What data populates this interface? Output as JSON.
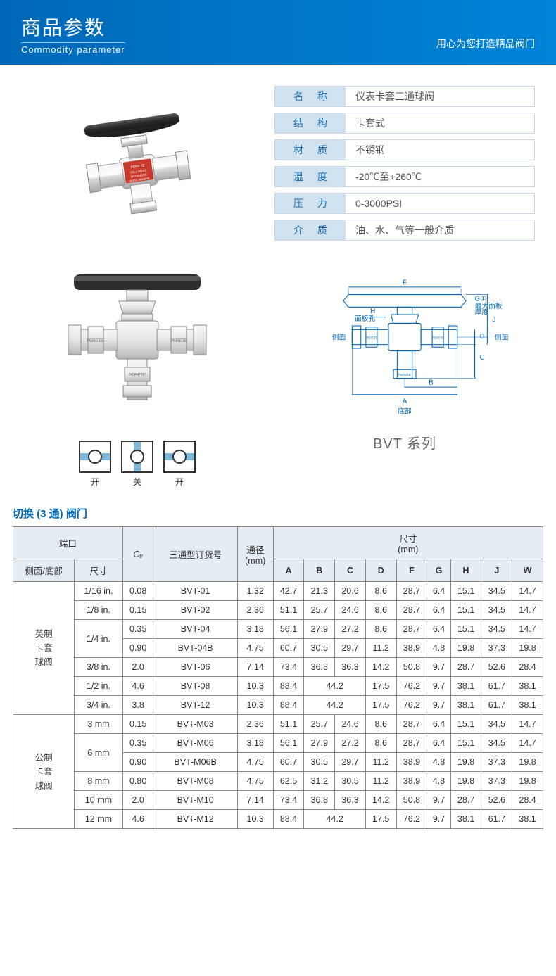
{
  "header": {
    "title_cn": "商品参数",
    "title_en": "Commodity parameter",
    "slogan": "用心为您打造精品阀门"
  },
  "specs": [
    {
      "label": "名 称",
      "value": "仪表卡套三通球阀"
    },
    {
      "label": "结 构",
      "value": "卡套式"
    },
    {
      "label": "材 质",
      "value": "不锈钢"
    },
    {
      "label": "温 度",
      "value": "-20℃至+260℃"
    },
    {
      "label": "压 力",
      "value": "0-3000PSI"
    },
    {
      "label": "介 质",
      "value": "油、水、气等一般介质"
    }
  ],
  "symbols": {
    "open": "开",
    "close": "关",
    "open2": "开"
  },
  "series_label": "BVT 系列",
  "dim_labels": {
    "panel_hole": "面板孔",
    "max_panel": "最大面板",
    "thickness": "厚度",
    "side": "侧面",
    "bottom": "底部"
  },
  "table": {
    "title": "切换 (3 通) 阀门",
    "headers": {
      "port": "端口",
      "side_bottom": "侧面/底部",
      "size": "尺寸",
      "cv": "Cᵥ",
      "partno": "三通型订货号",
      "bore": "通径\n(mm)",
      "dims": "尺寸\n(mm)",
      "A": "A",
      "B": "B",
      "C": "C",
      "D": "D",
      "F": "F",
      "G": "G",
      "H": "H",
      "J": "J",
      "W": "W"
    },
    "rowgroups": [
      {
        "name": "英制\n卡套\n球阀",
        "rows": [
          {
            "size": "1/16 in.",
            "cv": "0.08",
            "pn": "BVT-01",
            "bore": "1.32",
            "A": "42.7",
            "B": "21.3",
            "C": "20.6",
            "D": "8.6",
            "F": "28.7",
            "G": "6.4",
            "H": "15.1",
            "J": "34.5",
            "W": "14.7"
          },
          {
            "size": "1/8 in.",
            "cv": "0.15",
            "pn": "BVT-02",
            "bore": "2.36",
            "A": "51.1",
            "B": "25.7",
            "C": "24.6",
            "D": "8.6",
            "F": "28.7",
            "G": "6.4",
            "H": "15.1",
            "J": "34.5",
            "W": "14.7"
          },
          {
            "size": "1/4 in.",
            "sizeSpan": 2,
            "cv": "0.35",
            "pn": "BVT-04",
            "bore": "3.18",
            "A": "56.1",
            "B": "27.9",
            "C": "27.2",
            "D": "8.6",
            "F": "28.7",
            "G": "6.4",
            "H": "15.1",
            "J": "34.5",
            "W": "14.7"
          },
          {
            "cv": "0.90",
            "pn": "BVT-04B",
            "bore": "4.75",
            "A": "60.7",
            "B": "30.5",
            "C": "29.7",
            "D": "11.2",
            "F": "38.9",
            "G": "4.8",
            "H": "19.8",
            "J": "37.3",
            "W": "19.8"
          },
          {
            "size": "3/8 in.",
            "cv": "2.0",
            "pn": "BVT-06",
            "bore": "7.14",
            "A": "73.4",
            "B": "36.8",
            "C": "36.3",
            "D": "14.2",
            "F": "50.8",
            "G": "9.7",
            "H": "28.7",
            "J": "52.6",
            "W": "28.4"
          },
          {
            "size": "1/2 in.",
            "cv": "4.6",
            "pn": "BVT-08",
            "bore": "10.3",
            "A": "88.4",
            "BC": "44.2",
            "D": "17.5",
            "F": "76.2",
            "G": "9.7",
            "H": "38.1",
            "J": "61.7",
            "W": "38.1"
          },
          {
            "size": "3/4 in.",
            "cv": "3.8",
            "pn": "BVT-12",
            "bore": "10.3",
            "A": "88.4",
            "BC": "44.2",
            "D": "17.5",
            "F": "76.2",
            "G": "9.7",
            "H": "38.1",
            "J": "61.7",
            "W": "38.1"
          }
        ]
      },
      {
        "name": "公制\n卡套\n球阀",
        "rows": [
          {
            "size": "3 mm",
            "cv": "0.15",
            "pn": "BVT-M03",
            "bore": "2.36",
            "A": "51.1",
            "B": "25.7",
            "C": "24.6",
            "D": "8.6",
            "F": "28.7",
            "G": "6.4",
            "H": "15.1",
            "J": "34.5",
            "W": "14.7"
          },
          {
            "size": "6 mm",
            "sizeSpan": 2,
            "cv": "0.35",
            "pn": "BVT-M06",
            "bore": "3.18",
            "A": "56.1",
            "B": "27.9",
            "C": "27.2",
            "D": "8.6",
            "F": "28.7",
            "G": "6.4",
            "H": "15.1",
            "J": "34.5",
            "W": "14.7"
          },
          {
            "cv": "0.90",
            "pn": "BVT-M06B",
            "bore": "4.75",
            "A": "60.7",
            "B": "30.5",
            "C": "29.7",
            "D": "11.2",
            "F": "38.9",
            "G": "4.8",
            "H": "19.8",
            "J": "37.3",
            "W": "19.8"
          },
          {
            "size": "8 mm",
            "cv": "0.80",
            "pn": "BVT-M08",
            "bore": "4.75",
            "A": "62.5",
            "B": "31.2",
            "C": "30.5",
            "D": "11.2",
            "F": "38.9",
            "G": "4.8",
            "H": "19.8",
            "J": "37.3",
            "W": "19.8"
          },
          {
            "size": "10 mm",
            "cv": "2.0",
            "pn": "BVT-M10",
            "bore": "7.14",
            "A": "73.4",
            "B": "36.8",
            "C": "36.3",
            "D": "14.2",
            "F": "50.8",
            "G": "9.7",
            "H": "28.7",
            "J": "52.6",
            "W": "28.4"
          },
          {
            "size": "12 mm",
            "cv": "4.6",
            "pn": "BVT-M12",
            "bore": "10.3",
            "A": "88.4",
            "BC": "44.2",
            "D": "17.5",
            "F": "76.2",
            "G": "9.7",
            "H": "38.1",
            "J": "61.7",
            "W": "38.1"
          }
        ]
      }
    ]
  },
  "colors": {
    "header_bg": "#0068b7",
    "spec_label_bg": "#d0e2f0",
    "spec_border": "#c5d6e6",
    "table_header_bg": "#e5ecf4",
    "diagram_stroke": "#0068b7"
  }
}
